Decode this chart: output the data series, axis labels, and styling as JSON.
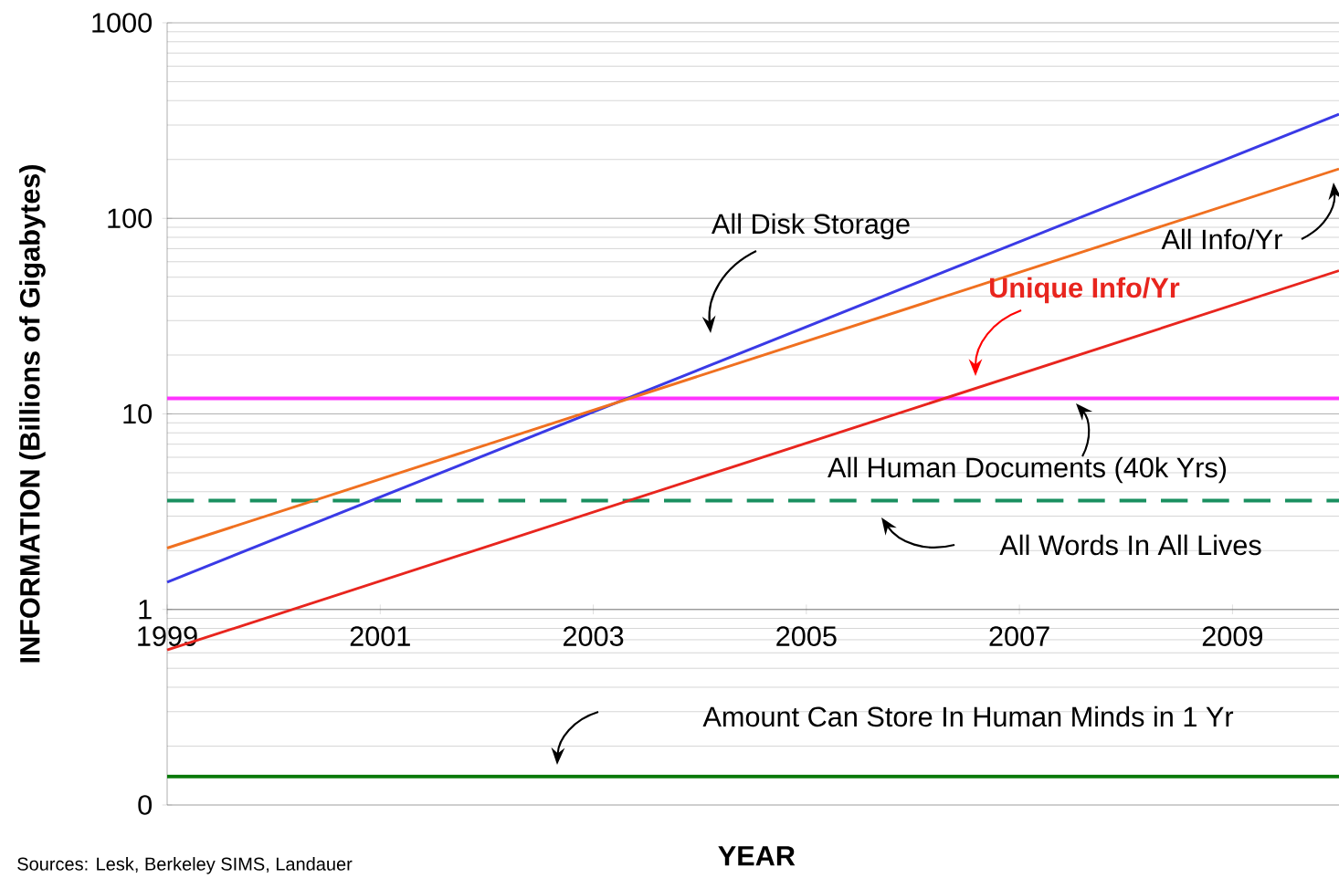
{
  "chart_data": {
    "type": "line",
    "xlabel": "YEAR",
    "ylabel": "INFORMATION (Billions of Gigabytes)",
    "log": "y",
    "grid": "y",
    "x": [
      1999,
      2010
    ],
    "series": [
      {
        "name": "All Disk Storage",
        "color": "#3a3ae6",
        "values": [
          1.38,
          341
        ]
      },
      {
        "name": "All Info/Yr",
        "color": "#f07020",
        "values": [
          2.06,
          179
        ]
      },
      {
        "name": "Unique Info/Yr",
        "color": "#e8251e",
        "values": [
          0.62,
          54
        ]
      }
    ],
    "xlim": [
      1999,
      2010
    ],
    "xticks": [
      1999,
      2001,
      2003,
      2005,
      2007,
      2009
    ],
    "ylim": [
      0.1,
      1000
    ],
    "yticks": [
      {
        "value": 0.1,
        "label": "0"
      },
      1,
      10,
      100,
      1000
    ],
    "ref_lines": [
      {
        "axis": "y",
        "value": 12,
        "label": "All Human Documents (40k Yrs)",
        "color": "#ff33ff",
        "line_style": "solid"
      },
      {
        "axis": "y",
        "value": 3.6,
        "label": "All Words In All Lives",
        "color": "#1a9060",
        "line_style": "dashed"
      },
      {
        "axis": "y",
        "value": 0.14,
        "label": "Amount Can Store In Human Minds in 1 Yr",
        "color": "#0a7a0a",
        "line_style": "solid"
      }
    ],
    "annotations": [
      "Sources: Lesk, Berkeley SIMS, Landauer"
    ]
  }
}
